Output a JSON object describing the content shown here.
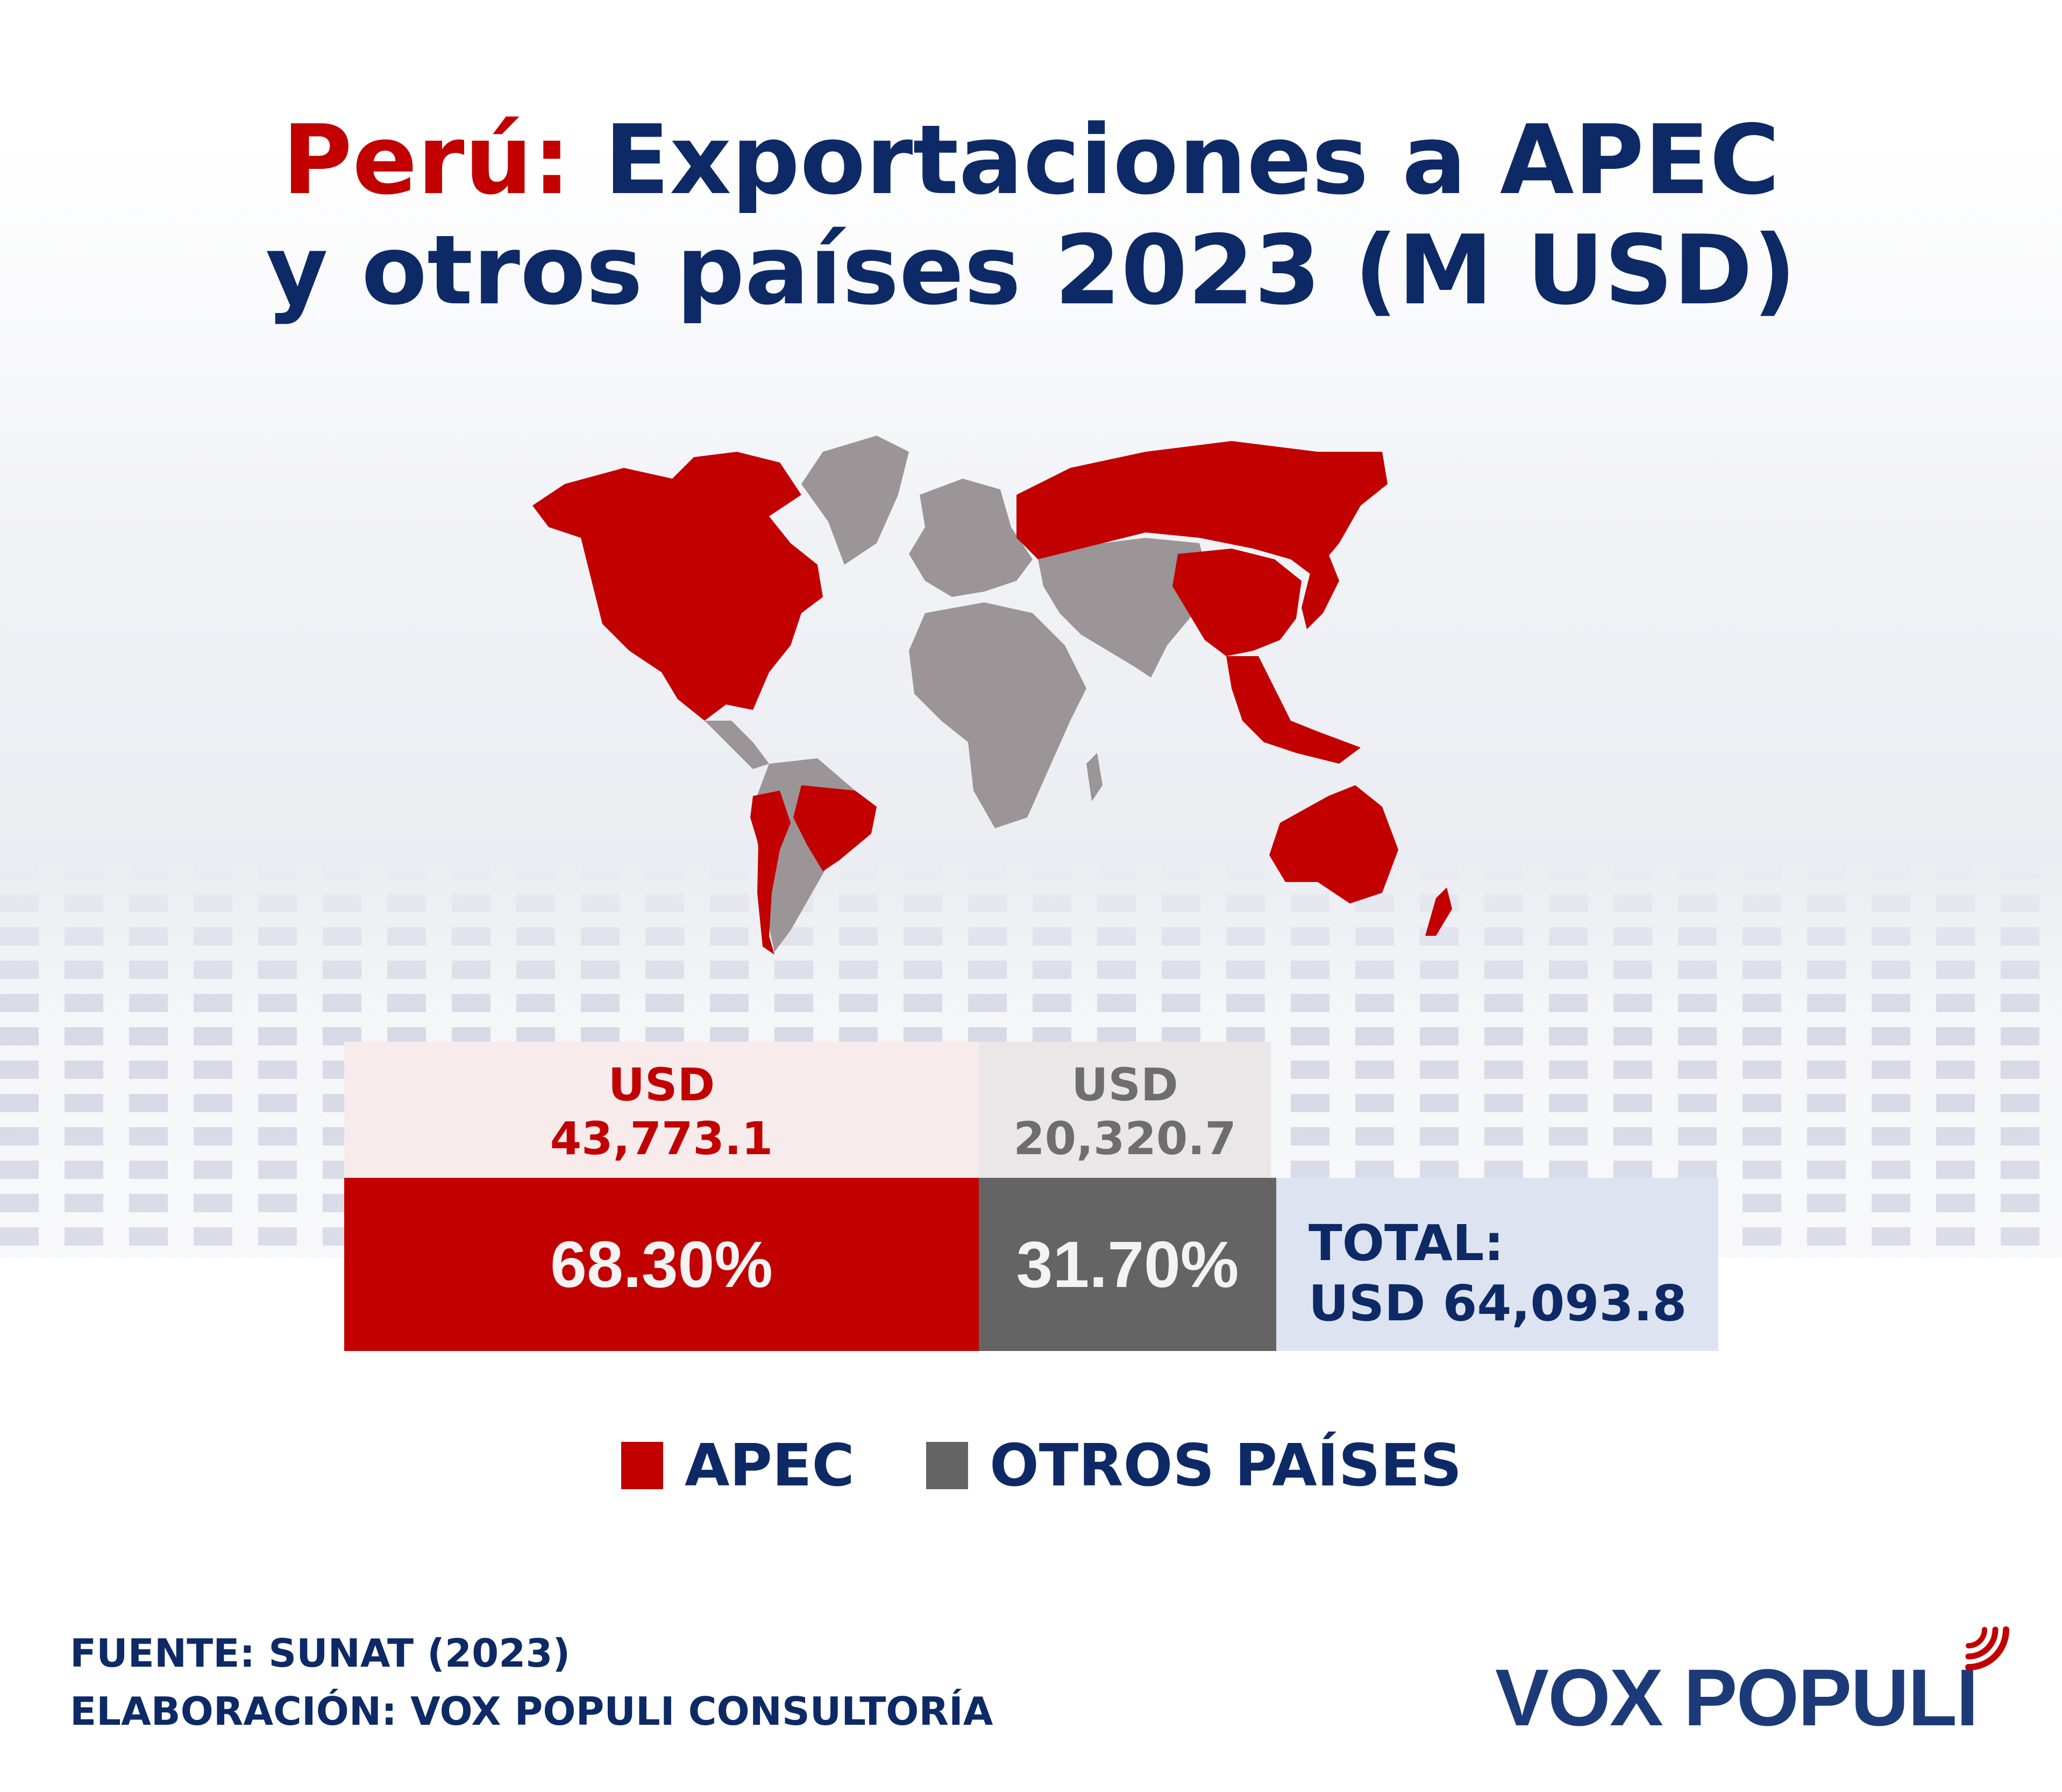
{
  "title": {
    "country": "Perú:",
    "line1_rest": "Exportaciones a APEC",
    "line2": "y otros países 2023 (M USD)"
  },
  "chart_data": {
    "type": "bar",
    "orientation": "horizontal-stacked",
    "categories": [
      "APEC",
      "OTROS PAÍSES"
    ],
    "values": [
      43773.1,
      20320.7
    ],
    "shares_pct": [
      68.3,
      31.7
    ],
    "total": 64093.8,
    "unit": "M USD",
    "colors": {
      "APEC": "#c20000",
      "OTROS PAÍSES": "#646464"
    }
  },
  "boxes": {
    "apec_currency": "USD",
    "apec_value": "43,773.1",
    "apec_pct": "68.30%",
    "otros_currency": "USD",
    "otros_value": "20,320.7",
    "otros_pct": "31.70%",
    "total_label": "TOTAL:",
    "total_value": "USD 64,093.8"
  },
  "legend": {
    "apec": "APEC",
    "otros": "OTROS PAÍSES"
  },
  "footer": {
    "source": "FUENTE: SUNAT (2023)",
    "elaboration": "ELABORACIÓN: VOX POPULI CONSULTORÍA"
  },
  "logo": {
    "text": "VOX POPULI"
  },
  "colors": {
    "navy": "#0d2a66",
    "red": "#c20000",
    "gray": "#646464",
    "map_gray": "#9b9597"
  }
}
